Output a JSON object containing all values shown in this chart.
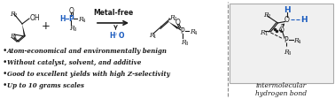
{
  "bg_color": "#ffffff",
  "black": "#1a1a1a",
  "blue": "#1a5bbf",
  "gray": "#888888",
  "bullet_points": [
    "Atom-economical and environmentally benign",
    "Without catalyst, solvent, and additive",
    "Good to excellent yields with high Z-selectivity",
    "Up to 10 grams scales"
  ],
  "intermolecular_label": "intermolecular\nhydrogen bond",
  "metal_free_label": "Metal-free",
  "figsize": [
    3.78,
    1.13
  ],
  "dpi": 100
}
